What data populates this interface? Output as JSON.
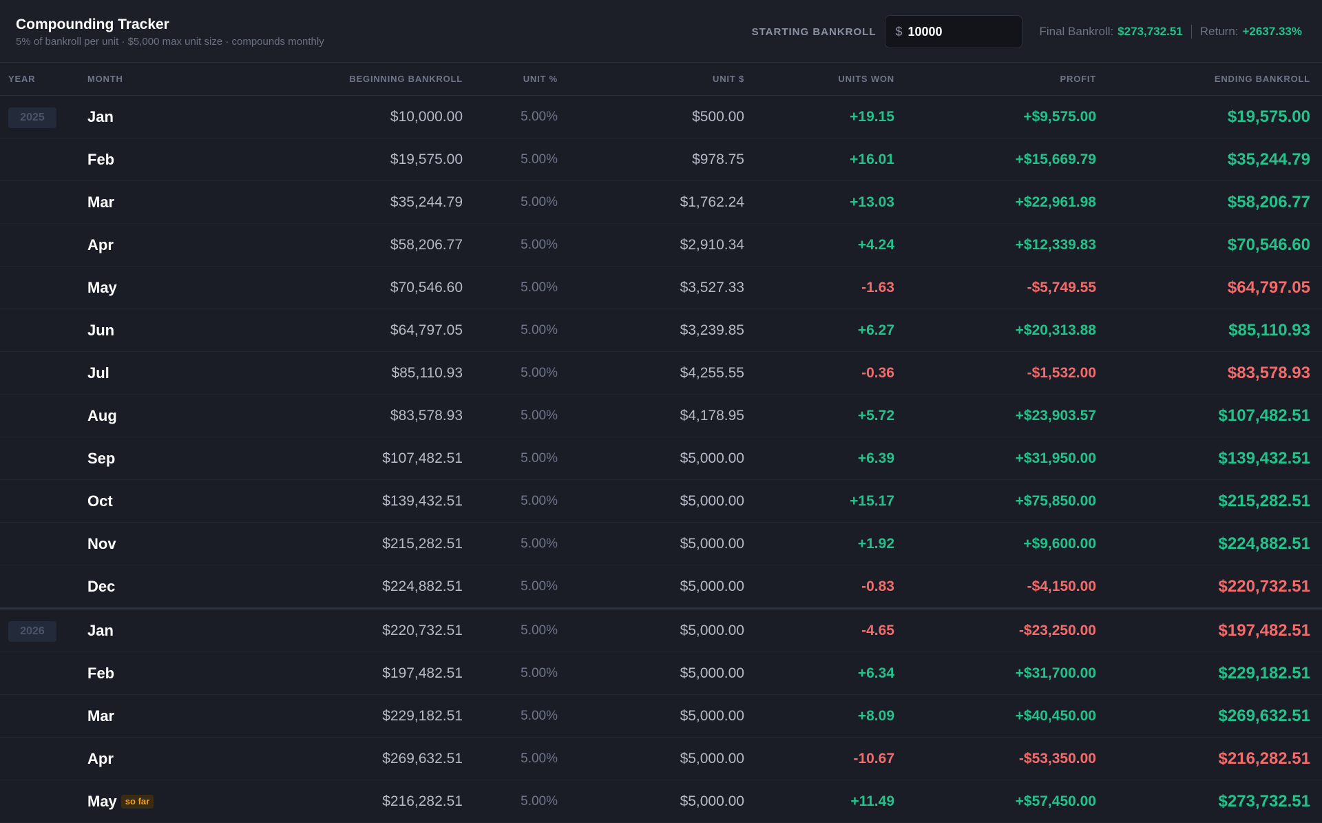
{
  "header": {
    "title": "Compounding Tracker",
    "subtitle": "5% of bankroll per unit · $5,000 max unit size · compounds monthly",
    "starting_bankroll_label": "STARTING BANKROLL",
    "currency_symbol": "$",
    "starting_bankroll_value": "10000",
    "final_bankroll_label": "Final Bankroll:",
    "final_bankroll_value": "$273,732.51",
    "return_label": "Return:",
    "return_value": "+2637.33%"
  },
  "columns": {
    "year": "YEAR",
    "month": "MONTH",
    "beginning": "BEGINNING BANKROLL",
    "unit_pct": "UNIT %",
    "unit_dollar": "UNIT $",
    "units_won": "UNITS WON",
    "profit": "PROFIT",
    "ending": "ENDING BANKROLL"
  },
  "colors": {
    "positive": "#22c28a",
    "negative": "#f36b6b",
    "badge": "#f0a020"
  },
  "sofar_label": "so far",
  "rows": [
    {
      "year": "2025",
      "month": "Jan",
      "begin": "$10,000.00",
      "pct": "5.00%",
      "unit": "$500.00",
      "units": "+19.15",
      "profit": "+$9,575.00",
      "end": "$19,575.00",
      "sign": "pos"
    },
    {
      "year": "",
      "month": "Feb",
      "begin": "$19,575.00",
      "pct": "5.00%",
      "unit": "$978.75",
      "units": "+16.01",
      "profit": "+$15,669.79",
      "end": "$35,244.79",
      "sign": "pos"
    },
    {
      "year": "",
      "month": "Mar",
      "begin": "$35,244.79",
      "pct": "5.00%",
      "unit": "$1,762.24",
      "units": "+13.03",
      "profit": "+$22,961.98",
      "end": "$58,206.77",
      "sign": "pos"
    },
    {
      "year": "",
      "month": "Apr",
      "begin": "$58,206.77",
      "pct": "5.00%",
      "unit": "$2,910.34",
      "units": "+4.24",
      "profit": "+$12,339.83",
      "end": "$70,546.60",
      "sign": "pos"
    },
    {
      "year": "",
      "month": "May",
      "begin": "$70,546.60",
      "pct": "5.00%",
      "unit": "$3,527.33",
      "units": "-1.63",
      "profit": "-$5,749.55",
      "end": "$64,797.05",
      "sign": "neg"
    },
    {
      "year": "",
      "month": "Jun",
      "begin": "$64,797.05",
      "pct": "5.00%",
      "unit": "$3,239.85",
      "units": "+6.27",
      "profit": "+$20,313.88",
      "end": "$85,110.93",
      "sign": "pos"
    },
    {
      "year": "",
      "month": "Jul",
      "begin": "$85,110.93",
      "pct": "5.00%",
      "unit": "$4,255.55",
      "units": "-0.36",
      "profit": "-$1,532.00",
      "end": "$83,578.93",
      "sign": "neg"
    },
    {
      "year": "",
      "month": "Aug",
      "begin": "$83,578.93",
      "pct": "5.00%",
      "unit": "$4,178.95",
      "units": "+5.72",
      "profit": "+$23,903.57",
      "end": "$107,482.51",
      "sign": "pos"
    },
    {
      "year": "",
      "month": "Sep",
      "begin": "$107,482.51",
      "pct": "5.00%",
      "unit": "$5,000.00",
      "units": "+6.39",
      "profit": "+$31,950.00",
      "end": "$139,432.51",
      "sign": "pos"
    },
    {
      "year": "",
      "month": "Oct",
      "begin": "$139,432.51",
      "pct": "5.00%",
      "unit": "$5,000.00",
      "units": "+15.17",
      "profit": "+$75,850.00",
      "end": "$215,282.51",
      "sign": "pos"
    },
    {
      "year": "",
      "month": "Nov",
      "begin": "$215,282.51",
      "pct": "5.00%",
      "unit": "$5,000.00",
      "units": "+1.92",
      "profit": "+$9,600.00",
      "end": "$224,882.51",
      "sign": "pos"
    },
    {
      "year": "",
      "month": "Dec",
      "begin": "$224,882.51",
      "pct": "5.00%",
      "unit": "$5,000.00",
      "units": "-0.83",
      "profit": "-$4,150.00",
      "end": "$220,732.51",
      "sign": "neg",
      "year_end": true
    },
    {
      "year": "2026",
      "month": "Jan",
      "begin": "$220,732.51",
      "pct": "5.00%",
      "unit": "$5,000.00",
      "units": "-4.65",
      "profit": "-$23,250.00",
      "end": "$197,482.51",
      "sign": "neg"
    },
    {
      "year": "",
      "month": "Feb",
      "begin": "$197,482.51",
      "pct": "5.00%",
      "unit": "$5,000.00",
      "units": "+6.34",
      "profit": "+$31,700.00",
      "end": "$229,182.51",
      "sign": "pos"
    },
    {
      "year": "",
      "month": "Mar",
      "begin": "$229,182.51",
      "pct": "5.00%",
      "unit": "$5,000.00",
      "units": "+8.09",
      "profit": "+$40,450.00",
      "end": "$269,632.51",
      "sign": "pos"
    },
    {
      "year": "",
      "month": "Apr",
      "begin": "$269,632.51",
      "pct": "5.00%",
      "unit": "$5,000.00",
      "units": "-10.67",
      "profit": "-$53,350.00",
      "end": "$216,282.51",
      "sign": "neg"
    },
    {
      "year": "",
      "month": "May",
      "begin": "$216,282.51",
      "pct": "5.00%",
      "unit": "$5,000.00",
      "units": "+11.49",
      "profit": "+$57,450.00",
      "end": "$273,732.51",
      "sign": "pos",
      "so_far": true
    }
  ]
}
